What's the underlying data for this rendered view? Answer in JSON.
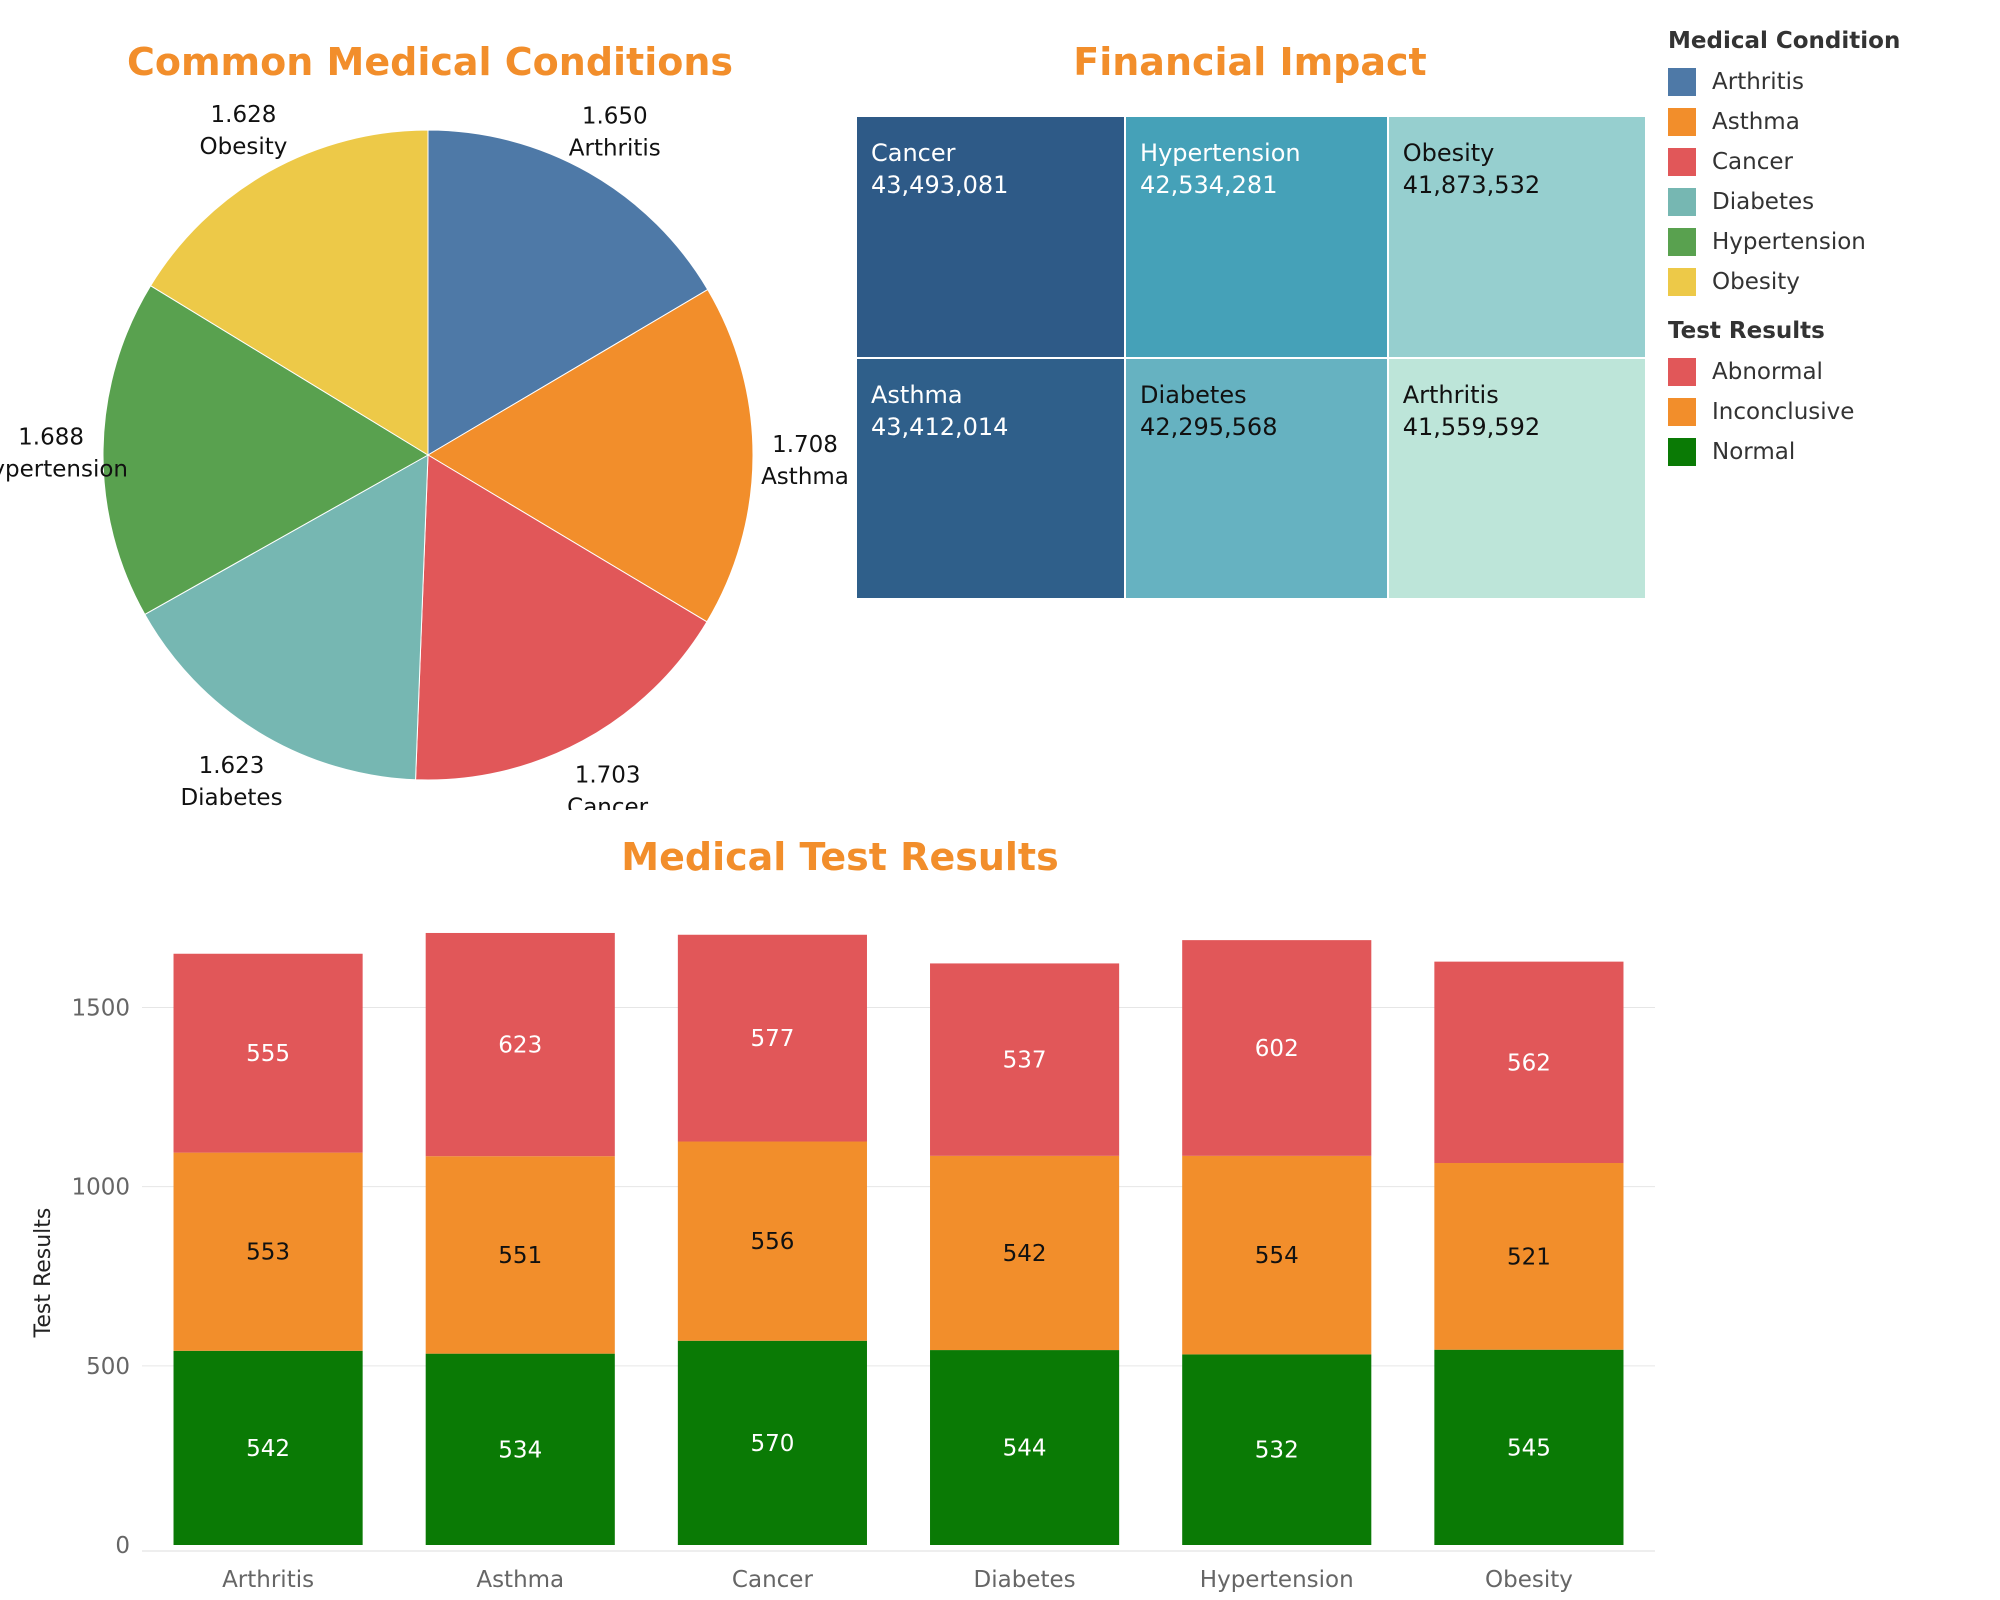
{
  "chart_data": [
    {
      "type": "pie",
      "title": "Common Medical Conditions",
      "slices": [
        {
          "label": "Arthritis",
          "value": 1650,
          "value_label": "1.650",
          "color": "#4e79a7"
        },
        {
          "label": "Asthma",
          "value": 1708,
          "value_label": "1.708",
          "color": "#f28e2b"
        },
        {
          "label": "Cancer",
          "value": 1703,
          "value_label": "1.703",
          "color": "#e15759"
        },
        {
          "label": "Diabetes",
          "value": 1623,
          "value_label": "1.623",
          "color": "#76b7b2"
        },
        {
          "label": "Hypertension",
          "value": 1688,
          "value_label": "1.688",
          "color": "#59a14f"
        },
        {
          "label": "Obesity",
          "value": 1628,
          "value_label": "1.628",
          "color": "#edc948"
        }
      ]
    },
    {
      "type": "treemap",
      "title": "Financial Impact",
      "cells": [
        {
          "label": "Cancer",
          "value_label": "43,493,081",
          "value": 43493081,
          "color": "#2e5a87",
          "text_color": "#ffffff"
        },
        {
          "label": "Asthma",
          "value_label": "43,412,014",
          "value": 43412014,
          "color": "#2f5f8a",
          "text_color": "#ffffff"
        },
        {
          "label": "Hypertension",
          "value_label": "42,534,281",
          "value": 42534281,
          "color": "#45a1b8",
          "text_color": "#ffffff"
        },
        {
          "label": "Diabetes",
          "value_label": "42,295,568",
          "value": 42295568,
          "color": "#66b2c1",
          "text_color": "#111111"
        },
        {
          "label": "Obesity",
          "value_label": "41,873,532",
          "value": 41873532,
          "color": "#96cfcf",
          "text_color": "#111111"
        },
        {
          "label": "Arthritis",
          "value_label": "41,559,592",
          "value": 41559592,
          "color": "#bde5d9",
          "text_color": "#111111"
        }
      ]
    },
    {
      "type": "bar",
      "stacked": true,
      "title": "Medical Test Results",
      "ylabel": "Test Results",
      "xlabel": "",
      "ylim": [
        0,
        1800
      ],
      "yticks": [
        0,
        500,
        1000,
        1500
      ],
      "categories": [
        "Arthritis",
        "Asthma",
        "Cancer",
        "Diabetes",
        "Hypertension",
        "Obesity"
      ],
      "series": [
        {
          "name": "Normal",
          "color": "#0a7a05",
          "values": [
            542,
            534,
            570,
            544,
            532,
            545
          ]
        },
        {
          "name": "Inconclusive",
          "color": "#f28e2b",
          "values": [
            553,
            551,
            556,
            542,
            554,
            521
          ]
        },
        {
          "name": "Abnormal",
          "color": "#e15759",
          "values": [
            555,
            623,
            577,
            537,
            602,
            562
          ]
        }
      ],
      "grid": true
    }
  ],
  "legend": {
    "condition_title": "Medical Condition",
    "conditions": [
      {
        "label": "Arthritis",
        "color": "#4e79a7"
      },
      {
        "label": "Asthma",
        "color": "#f28e2b"
      },
      {
        "label": "Cancer",
        "color": "#e15759"
      },
      {
        "label": "Diabetes",
        "color": "#76b7b2"
      },
      {
        "label": "Hypertension",
        "color": "#59a14f"
      },
      {
        "label": "Obesity",
        "color": "#edc948"
      }
    ],
    "results_title": "Test Results",
    "results": [
      {
        "label": "Abnormal",
        "color": "#e15759"
      },
      {
        "label": "Inconclusive",
        "color": "#f28e2b"
      },
      {
        "label": "Normal",
        "color": "#0a7a05"
      }
    ]
  }
}
